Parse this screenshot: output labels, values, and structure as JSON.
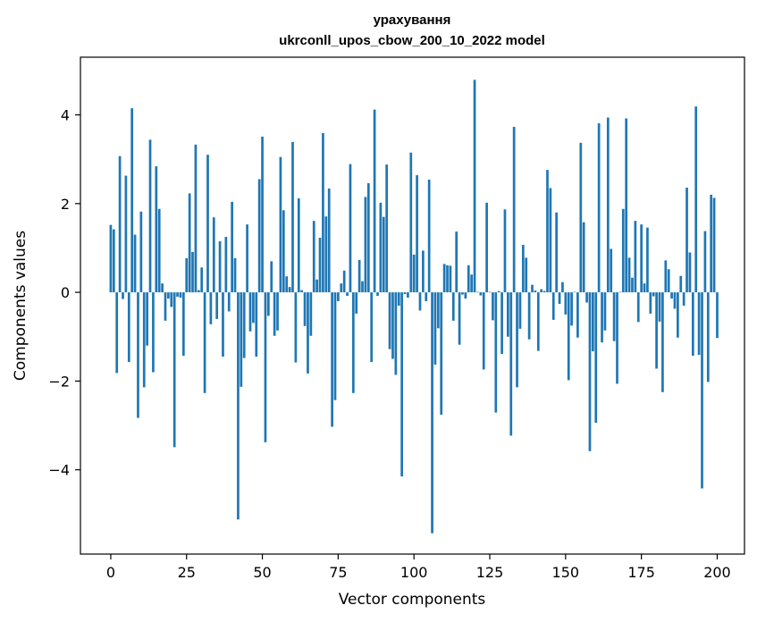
{
  "chart_data": {
    "type": "bar",
    "title": "урахування",
    "subtitle": "ukrconll_upos_cbow_200_10_2022 model",
    "xlabel": "Vector components",
    "ylabel": "Components values",
    "xlim": [
      -10,
      209
    ],
    "ylim": [
      -5.9,
      5.3
    ],
    "xticks": [
      0,
      25,
      50,
      75,
      100,
      125,
      150,
      175,
      200
    ],
    "xtick_labels": [
      "0",
      "25",
      "50",
      "75",
      "100",
      "125",
      "150",
      "175",
      "200"
    ],
    "yticks": [
      -4,
      -2,
      0,
      2,
      4
    ],
    "ytick_labels": [
      "−4",
      "−2",
      "0",
      "2",
      "4"
    ],
    "bar_color": "#1f77b4",
    "grid": false,
    "series": [
      {
        "values": [
          1.52,
          1.42,
          -1.82,
          3.07,
          -0.15,
          2.63,
          -1.57,
          4.15,
          1.3,
          -2.83,
          1.82,
          -2.14,
          -1.2,
          3.44,
          -1.8,
          2.84,
          1.88,
          0.2,
          -0.64,
          -0.14,
          -0.33,
          -3.49,
          -0.1,
          -0.12,
          -1.43,
          0.77,
          2.23,
          0.91,
          3.33,
          0.05,
          0.56,
          -2.27,
          3.1,
          -0.72,
          1.69,
          -0.6,
          1.15,
          -1.45,
          1.25,
          -0.43,
          2.04,
          0.77,
          -5.12,
          -2.13,
          -1.48,
          1.53,
          -0.88,
          -0.69,
          -1.45,
          2.55,
          3.51,
          -3.38,
          -0.53,
          0.7,
          -0.98,
          -0.86,
          3.05,
          1.85,
          0.36,
          0.12,
          3.39,
          -1.58,
          2.12,
          0.05,
          -0.76,
          -1.83,
          -0.98,
          1.61,
          0.29,
          1.23,
          3.59,
          1.71,
          2.34,
          -3.03,
          -2.43,
          -0.2,
          0.2,
          0.49,
          -0.08,
          2.89,
          -2.27,
          -0.48,
          0.73,
          0.25,
          2.15,
          2.46,
          -1.57,
          4.12,
          -0.08,
          2.02,
          1.7,
          2.88,
          -1.28,
          -1.5,
          -1.86,
          -0.3,
          -4.15,
          -0.04,
          -0.12,
          3.15,
          0.85,
          2.64,
          -0.41,
          0.94,
          -0.2,
          2.54,
          -5.43,
          -1.63,
          -0.81,
          -2.76,
          0.64,
          0.61,
          0.6,
          -0.64,
          1.37,
          -1.18,
          -0.05,
          -0.14,
          0.61,
          0.4,
          4.79,
          0.01,
          -0.07,
          -1.74,
          2.02,
          0.01,
          -0.63,
          -2.71,
          0.03,
          -1.39,
          1.87,
          -1.0,
          -3.23,
          3.73,
          -2.14,
          -0.82,
          1.07,
          0.78,
          -1.06,
          0.17,
          0.04,
          -1.32,
          0.07,
          0.03,
          2.76,
          2.35,
          -0.62,
          1.8,
          -0.26,
          0.23,
          -0.5,
          -1.98,
          -0.75,
          0.01,
          -1.02,
          3.37,
          1.58,
          -0.23,
          -3.58,
          -1.33,
          -2.94,
          3.81,
          -1.13,
          -0.86,
          3.94,
          0.98,
          -1.1,
          -2.06,
          0.01,
          1.88,
          3.92,
          0.78,
          0.33,
          1.61,
          -0.67,
          1.53,
          0.2,
          1.46,
          -0.48,
          -0.09,
          -1.72,
          -0.66,
          -2.25,
          0.72,
          0.52,
          -0.14,
          -0.37,
          -1.02,
          0.37,
          -0.3,
          2.36,
          0.9,
          -1.43,
          4.19,
          -1.41,
          -4.42,
          1.38,
          -2.02,
          2.2,
          2.13,
          -1.03
        ]
      }
    ]
  }
}
